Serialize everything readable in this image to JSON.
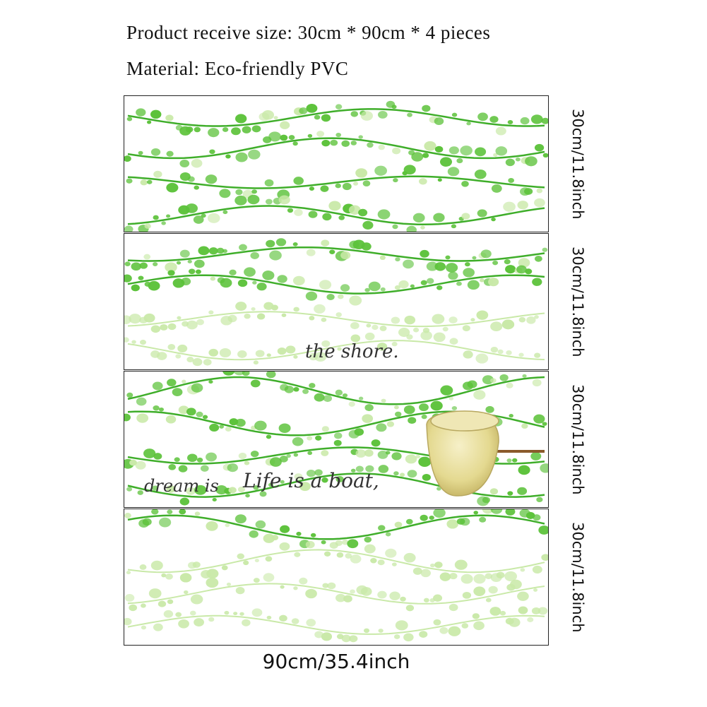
{
  "header": {
    "size_line": "Product receive size: 30cm * 90cm * 4 pieces",
    "material_line": "Material: Eco-friendly PVC"
  },
  "panels": [
    {
      "height_label": "30cm/11.8inch"
    },
    {
      "height_label": "30cm/11.8inch",
      "phrase": "the shore."
    },
    {
      "height_label": "30cm/11.8inch",
      "phrase_left": "dream is",
      "phrase_right": "Life is a boat,"
    },
    {
      "height_label": "30cm/11.8inch"
    }
  ],
  "width_label": "90cm/35.4inch",
  "colors": {
    "leaf": "#5cc23a",
    "leaf_light": "#c9e9a8",
    "vine": "#3fae2a",
    "border": "#222222"
  }
}
